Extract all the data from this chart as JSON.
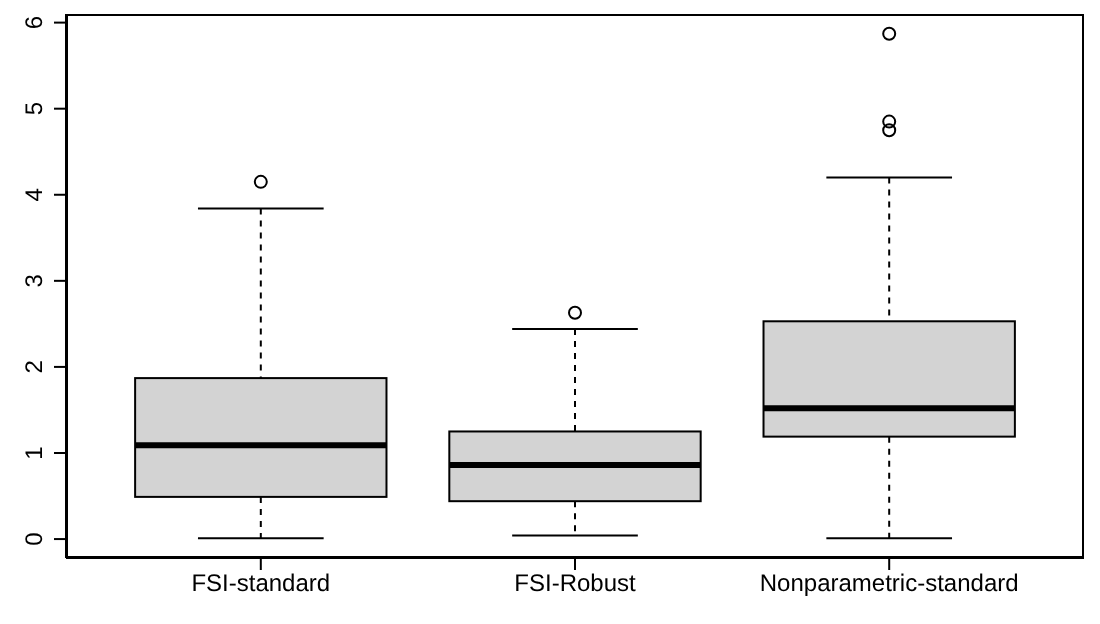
{
  "chart_data": {
    "type": "box",
    "categories": [
      "FSI-standard",
      "FSI-Robust",
      "Nonparametric-standard"
    ],
    "color": "#d3d3d3",
    "ylim": [
      -0.22,
      6.1
    ],
    "yticks": [
      0,
      1,
      2,
      3,
      4,
      5,
      6
    ],
    "boxes": [
      {
        "low": 0.01,
        "q1": 0.49,
        "median": 1.09,
        "q3": 1.87,
        "high": 3.84,
        "outliers": [
          4.15
        ]
      },
      {
        "low": 0.04,
        "q1": 0.44,
        "median": 0.86,
        "q3": 1.25,
        "high": 2.44,
        "outliers": [
          2.63
        ]
      },
      {
        "low": 0.01,
        "q1": 1.19,
        "median": 1.52,
        "q3": 2.53,
        "high": 4.2,
        "outliers": [
          4.75,
          4.85,
          5.87
        ]
      }
    ]
  }
}
